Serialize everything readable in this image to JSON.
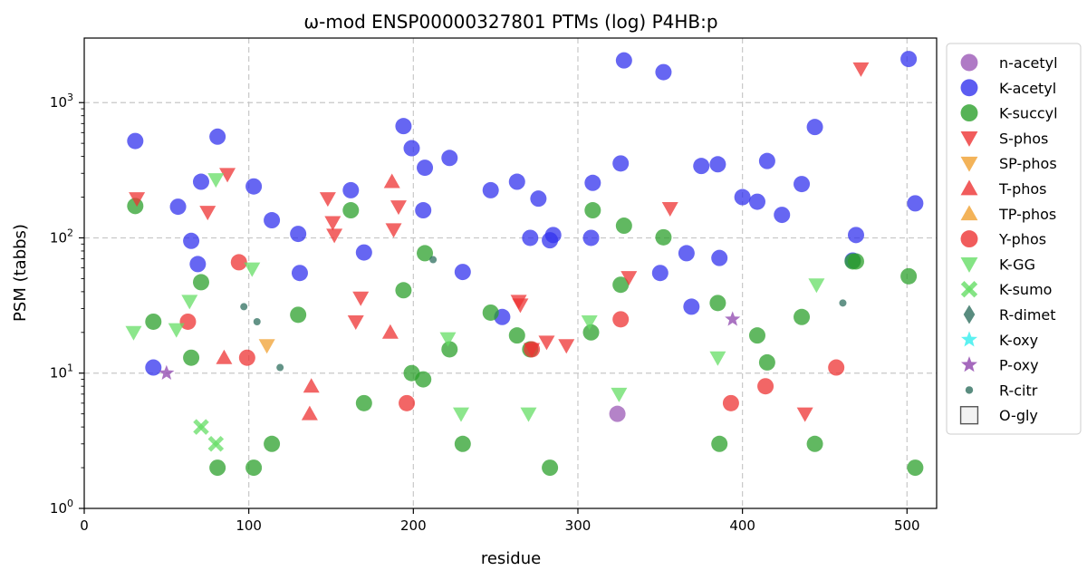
{
  "chart_data": {
    "type": "scatter",
    "title": "ω-mod ENSP00000327801 PTMs (log) P4HB:p",
    "xlabel": "residue",
    "ylabel": "PSM (tabbs)",
    "xlim": [
      0,
      518
    ],
    "ylim": [
      1,
      3000
    ],
    "yscale": "log",
    "grid": true,
    "legend_position": "right",
    "x_ticks": [
      "0",
      "100",
      "200",
      "300",
      "400",
      "500"
    ],
    "series": [
      {
        "name": "n-acetyl",
        "marker": "circle",
        "color": "#9b59b6",
        "points": [
          [
            324,
            5
          ]
        ]
      },
      {
        "name": "K-acetyl",
        "marker": "circle",
        "color": "#3333ee",
        "points": [
          [
            31,
            520
          ],
          [
            42,
            11
          ],
          [
            57,
            170
          ],
          [
            65,
            95
          ],
          [
            69,
            64
          ],
          [
            71,
            260
          ],
          [
            81,
            560
          ],
          [
            103,
            240
          ],
          [
            114,
            135
          ],
          [
            130,
            107
          ],
          [
            131,
            55
          ],
          [
            162,
            225
          ],
          [
            170,
            78
          ],
          [
            194,
            670
          ],
          [
            199,
            460
          ],
          [
            206,
            160
          ],
          [
            207,
            330
          ],
          [
            222,
            390
          ],
          [
            230,
            56
          ],
          [
            247,
            225
          ],
          [
            254,
            26
          ],
          [
            263,
            260
          ],
          [
            271,
            100
          ],
          [
            276,
            195
          ],
          [
            283,
            96
          ],
          [
            285,
            105
          ],
          [
            308,
            100
          ],
          [
            309,
            255
          ],
          [
            326,
            355
          ],
          [
            328,
            2050
          ],
          [
            350,
            55
          ],
          [
            352,
            1680
          ],
          [
            366,
            77
          ],
          [
            369,
            31
          ],
          [
            375,
            340
          ],
          [
            385,
            350
          ],
          [
            386,
            71
          ],
          [
            400,
            200
          ],
          [
            409,
            185
          ],
          [
            415,
            370
          ],
          [
            424,
            148
          ],
          [
            436,
            250
          ],
          [
            444,
            660
          ],
          [
            467,
            68
          ],
          [
            469,
            105
          ],
          [
            501,
            2100
          ],
          [
            505,
            180
          ]
        ]
      },
      {
        "name": "K-succyl",
        "marker": "circle",
        "color": "#2ca02c",
        "points": [
          [
            31,
            172
          ],
          [
            42,
            24
          ],
          [
            65,
            13
          ],
          [
            71,
            47
          ],
          [
            81,
            2
          ],
          [
            103,
            2
          ],
          [
            114,
            3
          ],
          [
            130,
            27
          ],
          [
            162,
            160
          ],
          [
            170,
            6
          ],
          [
            194,
            41
          ],
          [
            199,
            10
          ],
          [
            206,
            9
          ],
          [
            207,
            77
          ],
          [
            222,
            15
          ],
          [
            230,
            3
          ],
          [
            247,
            28
          ],
          [
            263,
            19
          ],
          [
            271,
            15
          ],
          [
            283,
            2
          ],
          [
            308,
            20
          ],
          [
            309,
            160
          ],
          [
            326,
            45
          ],
          [
            328,
            123
          ],
          [
            352,
            101
          ],
          [
            385,
            33
          ],
          [
            386,
            3
          ],
          [
            409,
            19
          ],
          [
            415,
            12
          ],
          [
            436,
            26
          ],
          [
            444,
            3
          ],
          [
            467,
            67
          ],
          [
            469,
            67
          ],
          [
            501,
            52
          ],
          [
            505,
            2
          ]
        ]
      },
      {
        "name": "S-phos",
        "marker": "triangle-down",
        "color": "#ee3333",
        "points": [
          [
            32,
            195
          ],
          [
            75,
            155
          ],
          [
            87,
            295
          ],
          [
            148,
            195
          ],
          [
            151,
            130
          ],
          [
            152,
            105
          ],
          [
            165,
            24
          ],
          [
            168,
            36
          ],
          [
            188,
            115
          ],
          [
            191,
            170
          ],
          [
            264,
            34
          ],
          [
            265,
            32
          ],
          [
            272,
            15
          ],
          [
            281,
            17
          ],
          [
            293,
            16
          ],
          [
            331,
            51
          ],
          [
            356,
            165
          ],
          [
            472,
            1780
          ],
          [
            438,
            5
          ]
        ]
      },
      {
        "name": "SP-phos",
        "marker": "triangle-down",
        "color": "#f0a030",
        "points": [
          [
            111,
            16
          ]
        ]
      },
      {
        "name": "T-phos",
        "marker": "triangle-up",
        "color": "#ee3333",
        "points": [
          [
            85,
            13
          ],
          [
            137,
            5
          ],
          [
            138,
            8
          ],
          [
            186,
            20
          ],
          [
            187,
            260
          ]
        ]
      },
      {
        "name": "TP-phos",
        "marker": "triangle-up",
        "color": "#f0a030",
        "points": []
      },
      {
        "name": "Y-phos",
        "marker": "circle",
        "color": "#ee3333",
        "points": [
          [
            63,
            24
          ],
          [
            94,
            66
          ],
          [
            99,
            13
          ],
          [
            196,
            6
          ],
          [
            272,
            15
          ],
          [
            326,
            25
          ],
          [
            393,
            6
          ],
          [
            414,
            8
          ],
          [
            457,
            11
          ]
        ]
      },
      {
        "name": "K-GG",
        "marker": "triangle-down",
        "color": "#66dd66",
        "points": [
          [
            30,
            20
          ],
          [
            56,
            21
          ],
          [
            64,
            34
          ],
          [
            80,
            270
          ],
          [
            102,
            59
          ],
          [
            221,
            18
          ],
          [
            229,
            5
          ],
          [
            270,
            5
          ],
          [
            307,
            24
          ],
          [
            325,
            7
          ],
          [
            385,
            13
          ],
          [
            445,
            45
          ]
        ]
      },
      {
        "name": "K-sumo",
        "marker": "x",
        "color": "#66dd66",
        "points": [
          [
            71,
            4
          ],
          [
            80,
            3
          ]
        ]
      },
      {
        "name": "R-dimet",
        "marker": "diamond",
        "color": "#2f6f5f",
        "points": []
      },
      {
        "name": "K-oxy",
        "marker": "star",
        "color": "#33eeee",
        "points": []
      },
      {
        "name": "P-oxy",
        "marker": "star",
        "color": "#8e44ad",
        "points": [
          [
            50,
            10
          ],
          [
            394,
            25
          ]
        ]
      },
      {
        "name": "R-citr",
        "marker": "small-circle",
        "color": "#2f6f5f",
        "points": [
          [
            97,
            31
          ],
          [
            105,
            24
          ],
          [
            119,
            11
          ],
          [
            212,
            69
          ],
          [
            461,
            33
          ]
        ]
      },
      {
        "name": "O-gly",
        "marker": "square-open",
        "color": "#555555",
        "points": []
      }
    ]
  }
}
